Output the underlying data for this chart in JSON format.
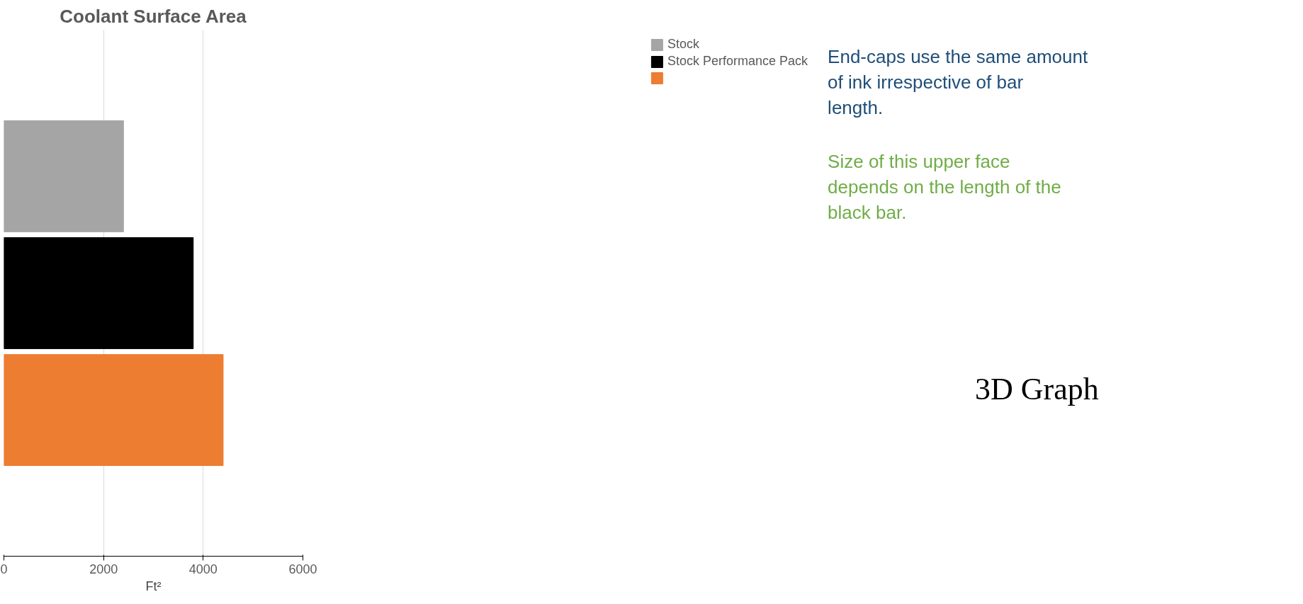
{
  "chart_data": {
    "type": "bar",
    "orientation": "horizontal",
    "title": "Coolant Surface Area",
    "xlabel": "Ft²",
    "categories": [
      null
    ],
    "series": [
      {
        "name": "Stock",
        "color": "#a5a5a5",
        "values": [
          2400
        ]
      },
      {
        "name": "Stock Performance Pack",
        "color": "#000000",
        "values": [
          3800
        ]
      },
      {
        "color": "#ed7d31",
        "values": [
          4400
        ]
      }
    ],
    "xlim": [
      0,
      6000
    ],
    "xticks": [
      0,
      2000,
      4000,
      6000
    ],
    "grid": "x",
    "legend": "right",
    "annotations": [
      "End-caps use the same amount of ink irrespective of bar length.",
      "Size of this upper face depends on the length of the black bar.",
      "3D Graph"
    ]
  }
}
